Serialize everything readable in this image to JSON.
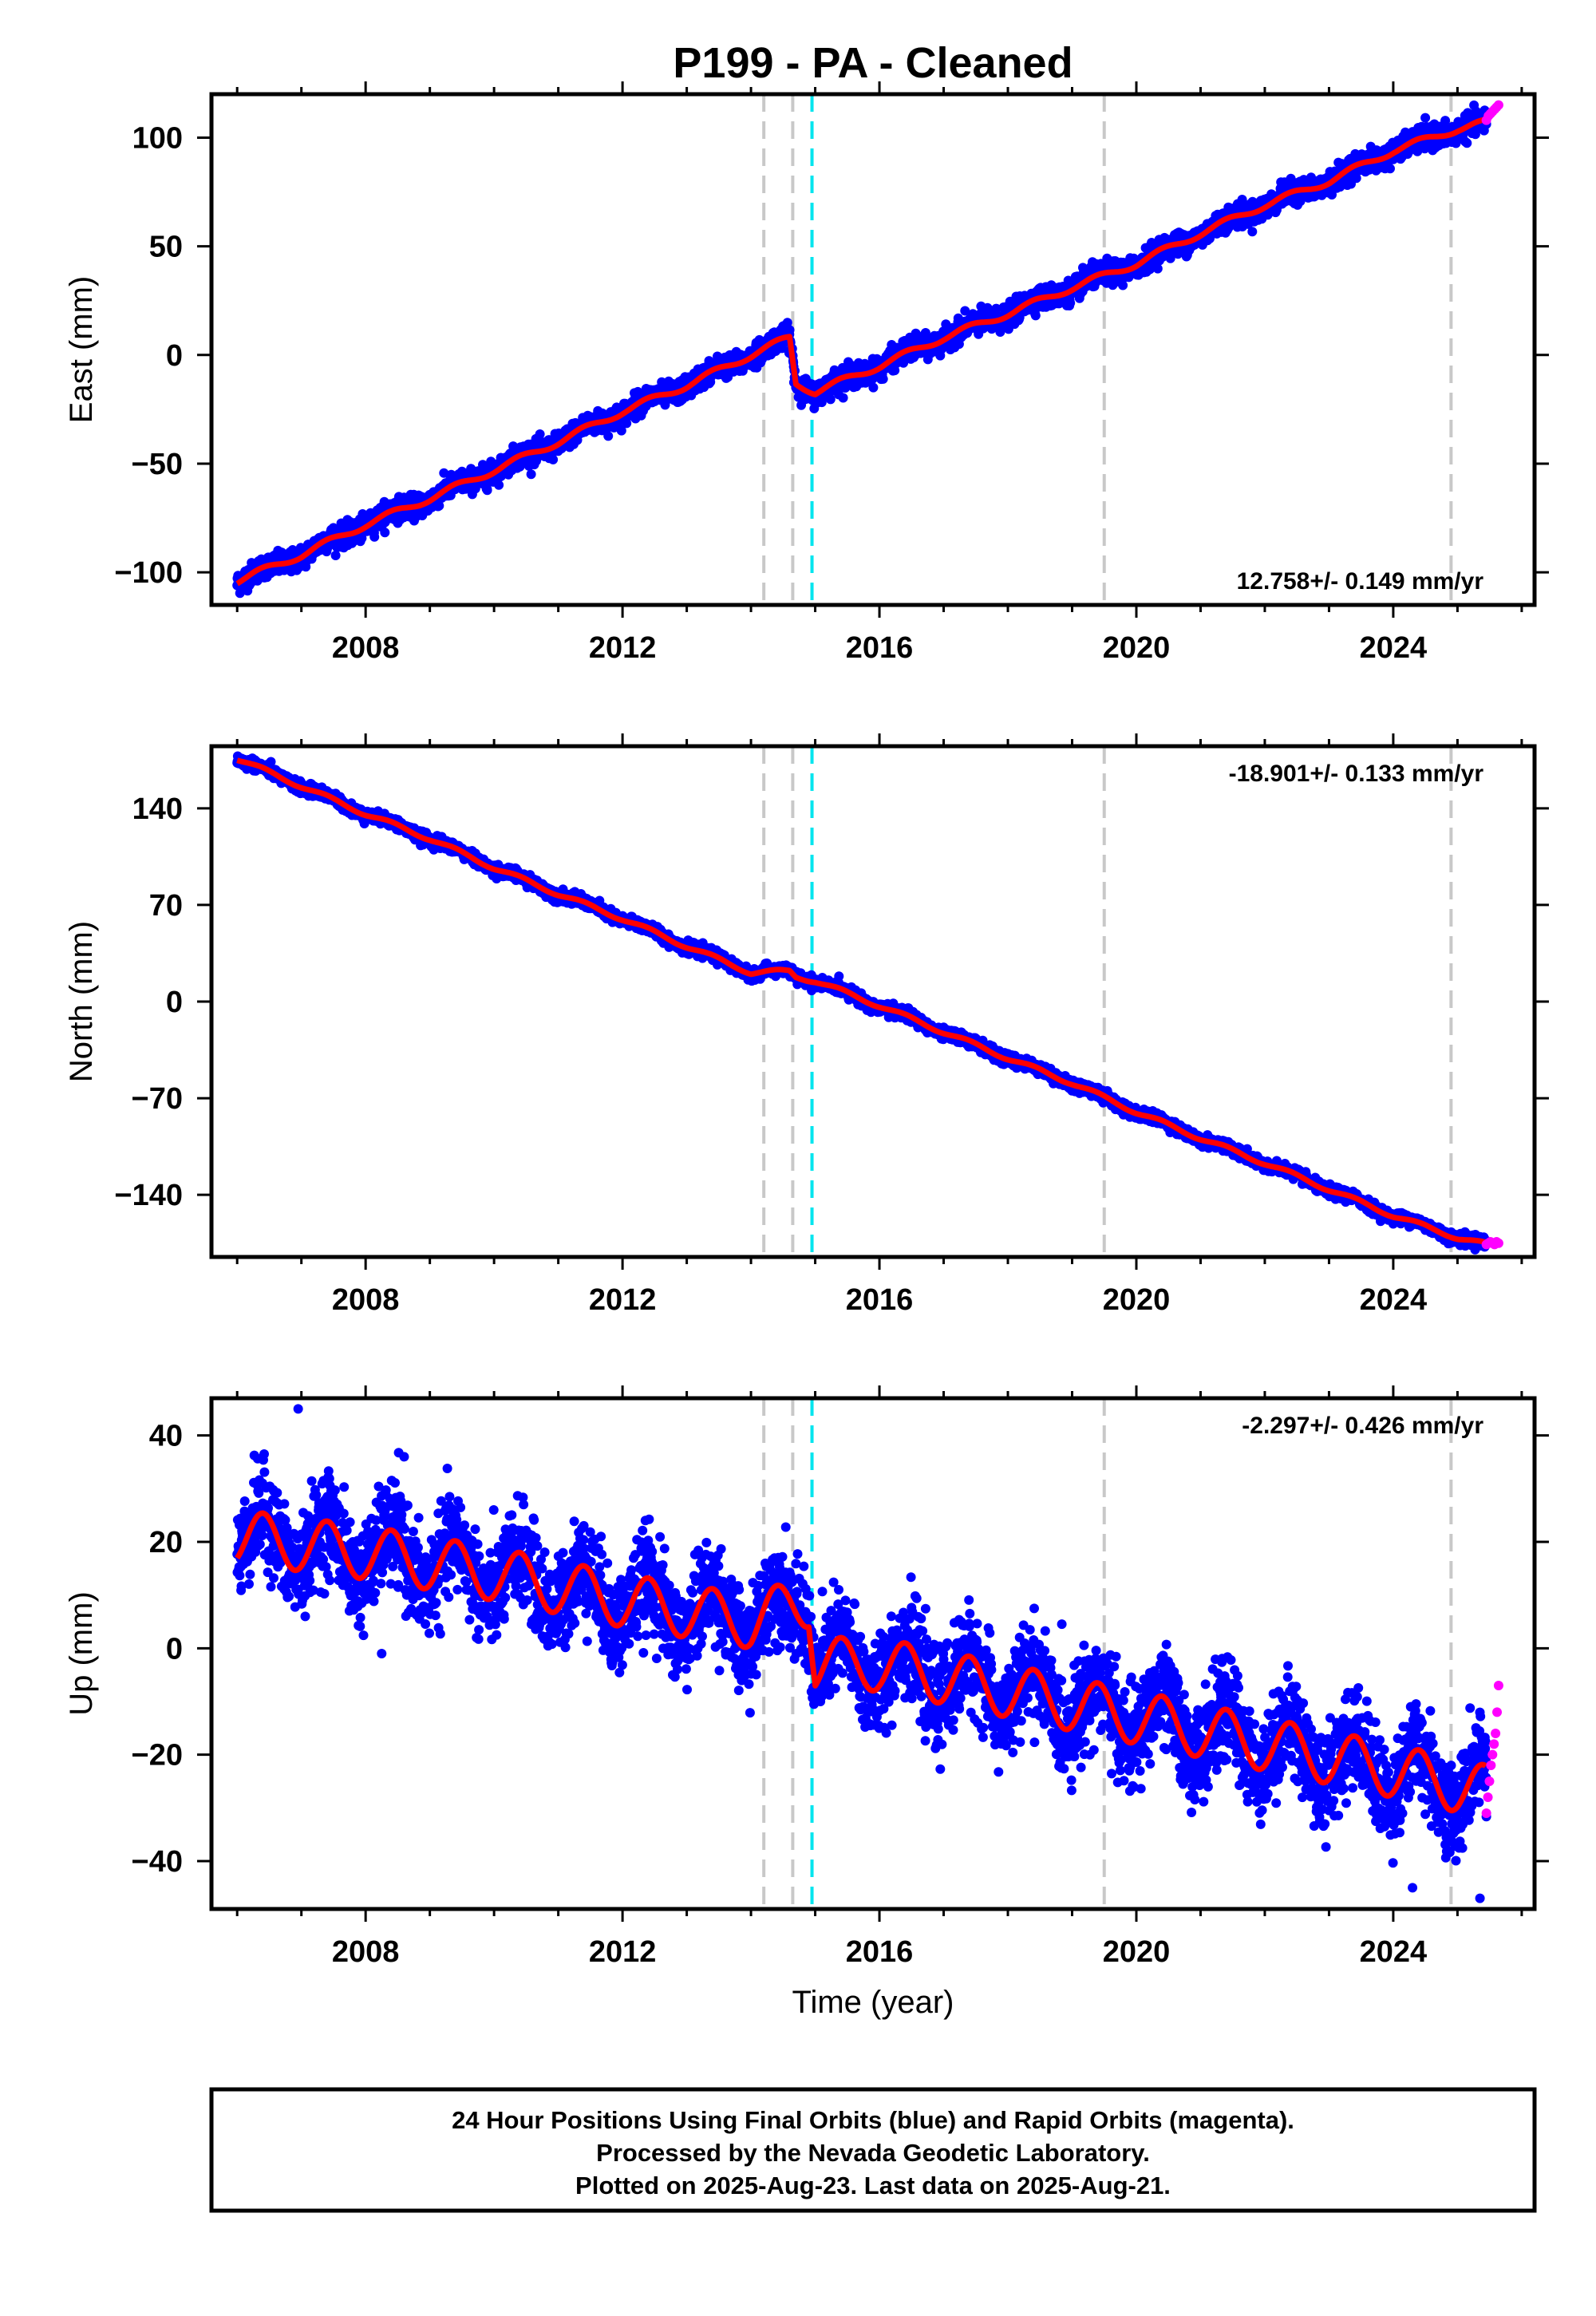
{
  "title": "P199  - PA - Cleaned",
  "footer": {
    "lines": [
      "24 Hour Positions Using Final Orbits (blue) and Rapid Orbits (magenta).",
      "Processed by the Nevada Geodetic Laboratory.",
      "Plotted on 2025-Aug-23. Last data on 2025-Aug-21."
    ]
  },
  "colors": {
    "final_orbits": "#0000ff",
    "rapid_orbits": "#ff00ff",
    "model_fit": "#ff0000",
    "equipment_change_lines": "#c8c8c8",
    "earthquake_line": "#00e5ee"
  },
  "chart_data": [
    {
      "type": "scatter",
      "panel": "east",
      "ylabel": "East (mm)",
      "xlabel": "",
      "xlim": [
        2005.6,
        2026.2
      ],
      "ylim": [
        -115,
        120
      ],
      "xticks": [
        2008,
        2012,
        2016,
        2020,
        2024
      ],
      "yticks": [
        -100,
        -50,
        0,
        50,
        100
      ],
      "rate_label": "12.758+/- 0.149 mm/yr",
      "rate_position": "bottom-right",
      "grid": false,
      "gray_dashed_lines_x": [
        2014.2,
        2014.65,
        2019.5,
        2024.9
      ],
      "cyan_dashed_lines_x": [
        2014.95
      ],
      "offsets": [
        {
          "x": 2014.65,
          "dy": -22
        },
        {
          "x": 2014.95,
          "dy": -3
        }
      ],
      "series": [
        {
          "role": "final",
          "x_start": 2006.0,
          "x_end": 2025.45,
          "trend_points": [
            [
              2006.0,
              -104
            ],
            [
              2007.0,
              -92
            ],
            [
              2008.0,
              -78
            ],
            [
              2009.0,
              -66
            ],
            [
              2010.0,
              -53
            ],
            [
              2011.0,
              -40
            ],
            [
              2012.0,
              -26
            ],
            [
              2013.0,
              -14
            ],
            [
              2014.0,
              0
            ],
            [
              2014.6,
              8
            ],
            [
              2014.7,
              -13
            ],
            [
              2015.0,
              -17
            ],
            [
              2016.0,
              -5
            ],
            [
              2017.0,
              8
            ],
            [
              2018.0,
              19
            ],
            [
              2019.0,
              31
            ],
            [
              2020.0,
              42
            ],
            [
              2021.0,
              56
            ],
            [
              2022.0,
              69
            ],
            [
              2023.0,
              80
            ],
            [
              2024.0,
              94
            ],
            [
              2025.0,
              104
            ],
            [
              2025.45,
              107
            ]
          ],
          "noise_mm": 2.5,
          "seasonal_amplitude_mm": 1.5
        },
        {
          "role": "rapid",
          "x_start": 2025.45,
          "x_end": 2025.64,
          "values": [
            108,
            110,
            111,
            112,
            113,
            114,
            115
          ]
        }
      ]
    },
    {
      "type": "scatter",
      "panel": "north",
      "ylabel": "North (mm)",
      "xlabel": "",
      "xlim": [
        2005.6,
        2026.2
      ],
      "ylim": [
        -185,
        185
      ],
      "xticks": [
        2008,
        2012,
        2016,
        2020,
        2024
      ],
      "yticks": [
        -140,
        -70,
        0,
        70,
        140
      ],
      "rate_label": "-18.901+/- 0.133 mm/yr",
      "rate_position": "top-right",
      "grid": false,
      "gray_dashed_lines_x": [
        2014.2,
        2014.65,
        2019.5,
        2024.9
      ],
      "cyan_dashed_lines_x": [
        2014.95
      ],
      "series": [
        {
          "role": "final",
          "x_start": 2006.0,
          "x_end": 2025.45,
          "trend_points": [
            [
              2006.0,
              176
            ],
            [
              2007.0,
              156
            ],
            [
              2008.0,
              136
            ],
            [
              2009.0,
              118
            ],
            [
              2010.0,
              97
            ],
            [
              2011.0,
              78
            ],
            [
              2012.0,
              60
            ],
            [
              2013.0,
              40
            ],
            [
              2014.0,
              21
            ],
            [
              2014.6,
              22
            ],
            [
              2014.7,
              18
            ],
            [
              2015.0,
              15
            ],
            [
              2016.0,
              -3
            ],
            [
              2017.0,
              -22
            ],
            [
              2018.0,
              -41
            ],
            [
              2019.0,
              -59
            ],
            [
              2020.0,
              -80
            ],
            [
              2021.0,
              -99
            ],
            [
              2022.0,
              -117
            ],
            [
              2023.0,
              -136
            ],
            [
              2024.0,
              -155
            ],
            [
              2025.0,
              -171
            ],
            [
              2025.45,
              -176
            ]
          ],
          "noise_mm": 2.0,
          "seasonal_amplitude_mm": 1.5
        },
        {
          "role": "rapid",
          "x_start": 2025.45,
          "x_end": 2025.64,
          "values": [
            -176,
            -175,
            -174,
            -175,
            -176,
            -174,
            -175
          ]
        }
      ]
    },
    {
      "type": "scatter",
      "panel": "up",
      "ylabel": "Up (mm)",
      "xlabel": "Time (year)",
      "xlim": [
        2005.6,
        2026.2
      ],
      "ylim": [
        -49,
        47
      ],
      "xticks": [
        2008,
        2012,
        2016,
        2020,
        2024
      ],
      "yticks": [
        -40,
        -20,
        0,
        20,
        40
      ],
      "rate_label": "-2.297+/- 0.426 mm/yr",
      "rate_position": "top-right",
      "grid": false,
      "gray_dashed_lines_x": [
        2014.2,
        2014.65,
        2019.5,
        2024.9
      ],
      "cyan_dashed_lines_x": [
        2014.95
      ],
      "series": [
        {
          "role": "final",
          "x_start": 2006.0,
          "x_end": 2025.45,
          "trend_points": [
            [
              2006.0,
              21
            ],
            [
              2008.0,
              18
            ],
            [
              2010.0,
              14
            ],
            [
              2012.0,
              9
            ],
            [
              2014.0,
              5
            ],
            [
              2014.9,
              9
            ],
            [
              2015.0,
              -3
            ],
            [
              2016.0,
              -3
            ],
            [
              2018.0,
              -8
            ],
            [
              2020.0,
              -13
            ],
            [
              2022.0,
              -18
            ],
            [
              2024.0,
              -23
            ],
            [
              2025.45,
              -27
            ]
          ],
          "noise_mm": 4.5,
          "seasonal_amplitude_mm": 5.0,
          "outliers": [
            [
              2006.95,
              45
            ],
            [
              2008.6,
              36
            ],
            [
              2008.25,
              -1
            ],
            [
              2024.3,
              -45
            ],
            [
              2025.35,
              -47
            ]
          ]
        },
        {
          "role": "rapid",
          "x_start": 2025.45,
          "x_end": 2025.64,
          "values": [
            -31,
            -28,
            -25,
            -22,
            -20,
            -18,
            -16,
            -12,
            -7
          ]
        }
      ]
    }
  ]
}
